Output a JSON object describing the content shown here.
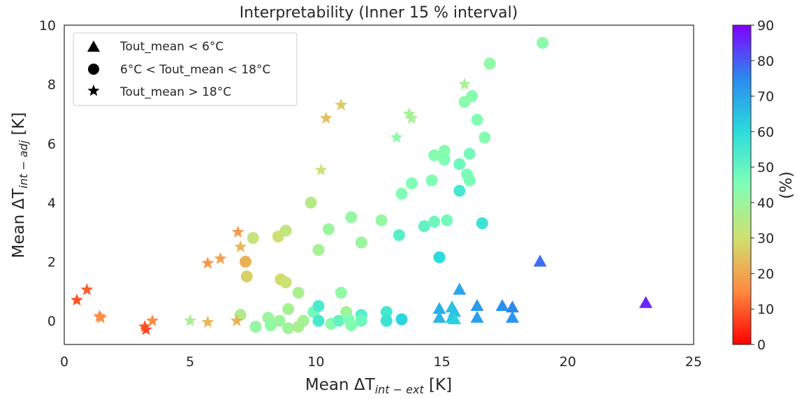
{
  "chart_data": {
    "type": "scatter",
    "title": "Interpretability (Inner 15 % interval)",
    "xlabel": "Mean ΔT",
    "xlabel_sub": "int − ext",
    "xlabel_unit": " [K]",
    "ylabel": "Mean ΔT",
    "ylabel_sub": "int − adj",
    "ylabel_unit": " [K]",
    "xlim": [
      0,
      25
    ],
    "ylim": [
      -0.8,
      10
    ],
    "xticks": [
      "0",
      "5",
      "10",
      "15",
      "20",
      "25"
    ],
    "yticks": [
      "0",
      "2",
      "4",
      "6",
      "8",
      "10"
    ],
    "grid": false,
    "legend_position": "top-left",
    "legend": [
      {
        "marker": "triangle",
        "label": "Tout_mean < 6°C"
      },
      {
        "marker": "circle",
        "label": "6°C < Tout_mean < 18°C"
      },
      {
        "marker": "star",
        "label": "Tout_mean > 18°C"
      }
    ],
    "colorbar": {
      "label": "(%)",
      "colormap": "rainbow_r",
      "range": [
        0,
        90
      ],
      "ticks": [
        "0",
        "10",
        "20",
        "30",
        "40",
        "50",
        "60",
        "70",
        "80",
        "90"
      ]
    },
    "series": [
      {
        "marker": "triangle",
        "points": [
          [
            14.9,
            0.4,
            68
          ],
          [
            14.9,
            0.1,
            67
          ],
          [
            15.4,
            0.45,
            65
          ],
          [
            15.5,
            0.3,
            65
          ],
          [
            15.4,
            0.1,
            64
          ],
          [
            15.5,
            0.05,
            62
          ],
          [
            15.7,
            1.05,
            70
          ],
          [
            16.4,
            0.5,
            72
          ],
          [
            16.4,
            0.1,
            71
          ],
          [
            17.4,
            0.5,
            74
          ],
          [
            17.8,
            0.45,
            75
          ],
          [
            17.8,
            0.1,
            73
          ],
          [
            18.9,
            2.0,
            78
          ],
          [
            23.1,
            0.6,
            86
          ]
        ]
      },
      {
        "marker": "circle",
        "points": [
          [
            7.0,
            0.2,
            36
          ],
          [
            7.2,
            2.0,
            22
          ],
          [
            7.25,
            1.5,
            27
          ],
          [
            7.5,
            2.8,
            32
          ],
          [
            7.6,
            -0.2,
            41
          ],
          [
            8.1,
            0.1,
            40
          ],
          [
            8.2,
            -0.15,
            42
          ],
          [
            8.5,
            2.85,
            30
          ],
          [
            8.55,
            0.0,
            40
          ],
          [
            8.6,
            1.4,
            29
          ],
          [
            8.8,
            1.3,
            31
          ],
          [
            8.8,
            3.05,
            33
          ],
          [
            8.9,
            0.4,
            38
          ],
          [
            8.9,
            -0.25,
            39
          ],
          [
            9.3,
            0.95,
            37
          ],
          [
            9.3,
            -0.2,
            37
          ],
          [
            9.5,
            0.0,
            38
          ],
          [
            9.8,
            4.0,
            35
          ],
          [
            9.9,
            0.3,
            47
          ],
          [
            10.1,
            0.5,
            54
          ],
          [
            10.1,
            0.0,
            55
          ],
          [
            10.1,
            2.4,
            38
          ],
          [
            10.5,
            3.1,
            40
          ],
          [
            10.6,
            -0.1,
            43
          ],
          [
            10.9,
            0.0,
            50
          ],
          [
            11.0,
            0.95,
            42
          ],
          [
            11.2,
            0.3,
            39
          ],
          [
            11.3,
            0.05,
            45
          ],
          [
            11.4,
            3.5,
            41
          ],
          [
            11.4,
            -0.15,
            44
          ],
          [
            11.8,
            0.2,
            52
          ],
          [
            11.8,
            0.0,
            48
          ],
          [
            11.8,
            2.65,
            40
          ],
          [
            12.6,
            3.4,
            41
          ],
          [
            12.8,
            0.3,
            55
          ],
          [
            12.8,
            0.0,
            57
          ],
          [
            13.3,
            2.9,
            52
          ],
          [
            13.4,
            4.3,
            45
          ],
          [
            13.4,
            0.05,
            61
          ],
          [
            13.8,
            4.65,
            45
          ],
          [
            14.3,
            3.2,
            50
          ],
          [
            14.6,
            4.75,
            45
          ],
          [
            14.7,
            3.35,
            48
          ],
          [
            14.7,
            5.6,
            44
          ],
          [
            14.9,
            2.15,
            60
          ],
          [
            15.1,
            5.75,
            44
          ],
          [
            15.1,
            5.45,
            45
          ],
          [
            15.2,
            3.4,
            47
          ],
          [
            15.7,
            5.3,
            48
          ],
          [
            15.7,
            4.4,
            55
          ],
          [
            15.9,
            7.4,
            43
          ],
          [
            16.0,
            4.95,
            46
          ],
          [
            16.1,
            4.75,
            46
          ],
          [
            16.1,
            5.65,
            47
          ],
          [
            16.2,
            7.6,
            44
          ],
          [
            16.4,
            6.8,
            45
          ],
          [
            16.6,
            3.3,
            57
          ],
          [
            16.7,
            6.2,
            44
          ],
          [
            16.9,
            8.7,
            42
          ],
          [
            19.0,
            9.4,
            43
          ]
        ]
      },
      {
        "marker": "star",
        "points": [
          [
            0.5,
            0.7,
            9
          ],
          [
            0.9,
            1.05,
            10
          ],
          [
            1.4,
            0.15,
            14
          ],
          [
            1.45,
            0.1,
            16
          ],
          [
            3.2,
            -0.2,
            9
          ],
          [
            3.25,
            -0.3,
            8
          ],
          [
            3.5,
            0.0,
            15
          ],
          [
            5.0,
            0.0,
            37
          ],
          [
            5.7,
            -0.05,
            23
          ],
          [
            5.7,
            1.95,
            17
          ],
          [
            6.2,
            2.1,
            19
          ],
          [
            6.85,
            0.0,
            22
          ],
          [
            6.9,
            3.0,
            18
          ],
          [
            7.0,
            2.5,
            23
          ],
          [
            10.2,
            5.1,
            32
          ],
          [
            10.4,
            6.85,
            25
          ],
          [
            11.0,
            7.3,
            26
          ],
          [
            13.2,
            6.2,
            43
          ],
          [
            13.7,
            7.0,
            38
          ],
          [
            13.8,
            6.85,
            38
          ],
          [
            15.9,
            8.0,
            38
          ]
        ]
      }
    ]
  }
}
